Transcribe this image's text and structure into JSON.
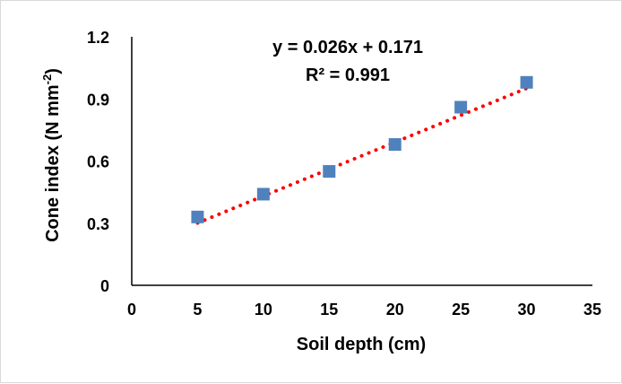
{
  "chart_data": {
    "type": "scatter",
    "title": "",
    "xlabel": "Soil depth (cm)",
    "ylabel_main": "Cone index (N mm",
    "ylabel_sup": "-2",
    "ylabel_close": ")",
    "xlim": [
      0,
      35
    ],
    "ylim": [
      0,
      1.2
    ],
    "x_ticks": [
      "0",
      "5",
      "10",
      "15",
      "20",
      "25",
      "30",
      "35"
    ],
    "y_ticks": [
      "0",
      "0.3",
      "0.6",
      "0.9",
      "1.2"
    ],
    "x_tick_values": [
      0,
      5,
      10,
      15,
      20,
      25,
      30,
      35
    ],
    "y_tick_values": [
      0,
      0.3,
      0.6,
      0.9,
      1.2
    ],
    "grid": false,
    "series": [
      {
        "x": [
          5,
          10,
          15,
          20,
          25,
          30
        ],
        "y": [
          0.33,
          0.44,
          0.55,
          0.68,
          0.86,
          0.98
        ],
        "marker": "square",
        "color": "#4f81bd"
      }
    ],
    "trendline": {
      "type": "linear",
      "slope": 0.026,
      "intercept": 0.171,
      "x_range": [
        5,
        30
      ],
      "color": "#ff0000",
      "style": "dotted"
    },
    "annotations": {
      "equation": "y = 0.026x + 0.171",
      "r_squared": "R² = 0.991"
    }
  }
}
